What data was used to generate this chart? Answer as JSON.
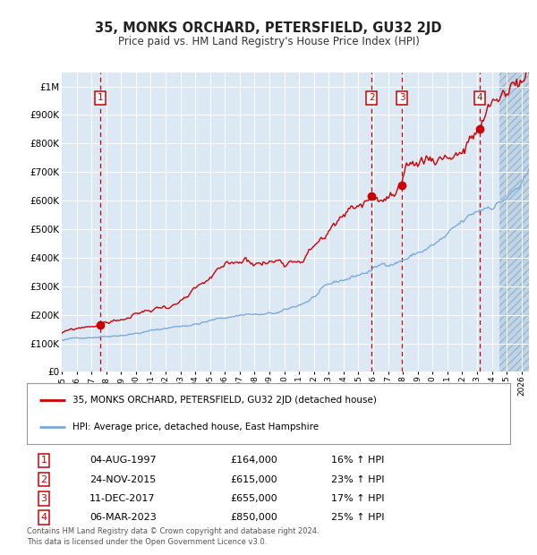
{
  "title": "35, MONKS ORCHARD, PETERSFIELD, GU32 2JD",
  "subtitle": "Price paid vs. HM Land Registry's House Price Index (HPI)",
  "legend_line1": "35, MONKS ORCHARD, PETERSFIELD, GU32 2JD (detached house)",
  "legend_line2": "HPI: Average price, detached house, East Hampshire",
  "footer1": "Contains HM Land Registry data © Crown copyright and database right 2024.",
  "footer2": "This data is licensed under the Open Government Licence v3.0.",
  "purchases": [
    {
      "label": "1",
      "date_str": "04-AUG-1997",
      "price": 164000,
      "hpi_pct": "16% ↑ HPI",
      "year": 1997.59
    },
    {
      "label": "2",
      "date_str": "24-NOV-2015",
      "price": 615000,
      "hpi_pct": "23% ↑ HPI",
      "year": 2015.9
    },
    {
      "label": "3",
      "date_str": "11-DEC-2017",
      "price": 655000,
      "hpi_pct": "17% ↑ HPI",
      "year": 2017.94
    },
    {
      "label": "4",
      "date_str": "06-MAR-2023",
      "price": 850000,
      "hpi_pct": "25% ↑ HPI",
      "year": 2023.18
    }
  ],
  "xmin": 1995.0,
  "xmax": 2026.5,
  "ymin": 0,
  "ymax": 1050000,
  "yticks": [
    0,
    100000,
    200000,
    300000,
    400000,
    500000,
    600000,
    700000,
    800000,
    900000,
    1000000
  ],
  "ylabels": [
    "£0",
    "£100K",
    "£200K",
    "£300K",
    "£400K",
    "£500K",
    "£600K",
    "£700K",
    "£800K",
    "£900K",
    "£1M"
  ],
  "bg_color": "#dce9f5",
  "grid_color": "#ffffff",
  "hatch_color": "#c0d4e8",
  "red_line_color": "#cc0000",
  "blue_line_color": "#7aaadd",
  "vline_color": "#cc0000",
  "marker_color": "#cc0000",
  "label_box_color": "#cc0000",
  "hatch_start": 2024.5
}
